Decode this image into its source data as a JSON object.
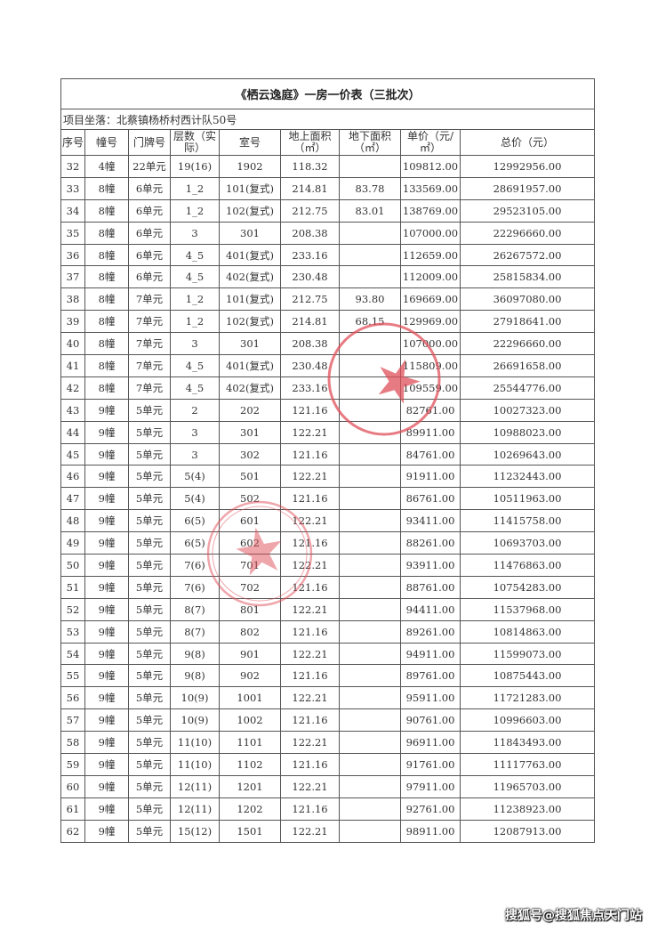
{
  "document": {
    "title": "《栖云逸庭》一房一价表（三批次）",
    "address": "项目坐落：北蔡镇杨桥村西计队50号",
    "headers": [
      "序号",
      "幢号",
      "门牌号",
      "层数（实际）",
      "室号",
      "地上面积（㎡）",
      "地下面积（㎡）",
      "单价（元/㎡）",
      "总价（元）"
    ],
    "rows": [
      [
        "32",
        "4幢",
        "22单元",
        "19(16)",
        "1902",
        "118.32",
        "",
        "109812.00",
        "12992956.00"
      ],
      [
        "33",
        "8幢",
        "6单元",
        "1_2",
        "101(复式)",
        "214.81",
        "83.78",
        "133569.00",
        "28691957.00"
      ],
      [
        "34",
        "8幢",
        "6单元",
        "1_2",
        "102(复式)",
        "212.75",
        "83.01",
        "138769.00",
        "29523105.00"
      ],
      [
        "35",
        "8幢",
        "6单元",
        "3",
        "301",
        "208.38",
        "",
        "107000.00",
        "22296660.00"
      ],
      [
        "36",
        "8幢",
        "6单元",
        "4_5",
        "401(复式)",
        "233.16",
        "",
        "112659.00",
        "26267572.00"
      ],
      [
        "37",
        "8幢",
        "6单元",
        "4_5",
        "402(复式)",
        "230.48",
        "",
        "112009.00",
        "25815834.00"
      ],
      [
        "38",
        "8幢",
        "7单元",
        "1_2",
        "101(复式)",
        "212.75",
        "93.80",
        "169669.00",
        "36097080.00"
      ],
      [
        "39",
        "8幢",
        "7单元",
        "1_2",
        "102(复式)",
        "214.81",
        "68.15",
        "129969.00",
        "27918641.00"
      ],
      [
        "40",
        "8幢",
        "7单元",
        "3",
        "301",
        "208.38",
        "",
        "107000.00",
        "22296660.00"
      ],
      [
        "41",
        "8幢",
        "7单元",
        "4_5",
        "401(复式)",
        "230.48",
        "",
        "115809.00",
        "26691658.00"
      ],
      [
        "42",
        "8幢",
        "7单元",
        "4_5",
        "402(复式)",
        "233.16",
        "",
        "109559.00",
        "25544776.00"
      ],
      [
        "43",
        "9幢",
        "5单元",
        "2",
        "202",
        "121.16",
        "",
        "82761.00",
        "10027323.00"
      ],
      [
        "44",
        "9幢",
        "5单元",
        "3",
        "301",
        "122.21",
        "",
        "89911.00",
        "10988023.00"
      ],
      [
        "45",
        "9幢",
        "5单元",
        "3",
        "302",
        "121.16",
        "",
        "84761.00",
        "10269643.00"
      ],
      [
        "46",
        "9幢",
        "5单元",
        "5(4)",
        "501",
        "122.21",
        "",
        "91911.00",
        "11232443.00"
      ],
      [
        "47",
        "9幢",
        "5单元",
        "5(4)",
        "502",
        "121.16",
        "",
        "86761.00",
        "10511963.00"
      ],
      [
        "48",
        "9幢",
        "5单元",
        "6(5)",
        "601",
        "122.21",
        "",
        "93411.00",
        "11415758.00"
      ],
      [
        "49",
        "9幢",
        "5单元",
        "6(5)",
        "602",
        "121.16",
        "",
        "88261.00",
        "10693703.00"
      ],
      [
        "50",
        "9幢",
        "5单元",
        "7(6)",
        "701",
        "122.21",
        "",
        "93911.00",
        "11476863.00"
      ],
      [
        "51",
        "9幢",
        "5单元",
        "7(6)",
        "702",
        "121.16",
        "",
        "88761.00",
        "10754283.00"
      ],
      [
        "52",
        "9幢",
        "5单元",
        "8(7)",
        "801",
        "122.21",
        "",
        "94411.00",
        "11537968.00"
      ],
      [
        "53",
        "9幢",
        "5单元",
        "8(7)",
        "802",
        "121.16",
        "",
        "89261.00",
        "10814863.00"
      ],
      [
        "54",
        "9幢",
        "5单元",
        "9(8)",
        "901",
        "122.21",
        "",
        "94911.00",
        "11599073.00"
      ],
      [
        "55",
        "9幢",
        "5单元",
        "9(8)",
        "902",
        "121.16",
        "",
        "89761.00",
        "10875443.00"
      ],
      [
        "56",
        "9幢",
        "5单元",
        "10(9)",
        "1001",
        "122.21",
        "",
        "95911.00",
        "11721283.00"
      ],
      [
        "57",
        "9幢",
        "5单元",
        "10(9)",
        "1002",
        "121.16",
        "",
        "90761.00",
        "10996603.00"
      ],
      [
        "58",
        "9幢",
        "5单元",
        "11(10)",
        "1101",
        "122.21",
        "",
        "96911.00",
        "11843493.00"
      ],
      [
        "59",
        "9幢",
        "5单元",
        "11(10)",
        "1102",
        "121.16",
        "",
        "91761.00",
        "11117763.00"
      ],
      [
        "60",
        "9幢",
        "5单元",
        "12(11)",
        "1201",
        "122.21",
        "",
        "97911.00",
        "11965703.00"
      ],
      [
        "61",
        "9幢",
        "5单元",
        "12(11)",
        "1202",
        "121.16",
        "",
        "92761.00",
        "11238923.00"
      ],
      [
        "62",
        "9幢",
        "5单元",
        "15(12)",
        "1501",
        "122.21",
        "",
        "98911.00",
        "12087913.00"
      ]
    ]
  },
  "stamp_color": "#e0505a",
  "watermark": "搜狐号@搜狐焦点天门站"
}
